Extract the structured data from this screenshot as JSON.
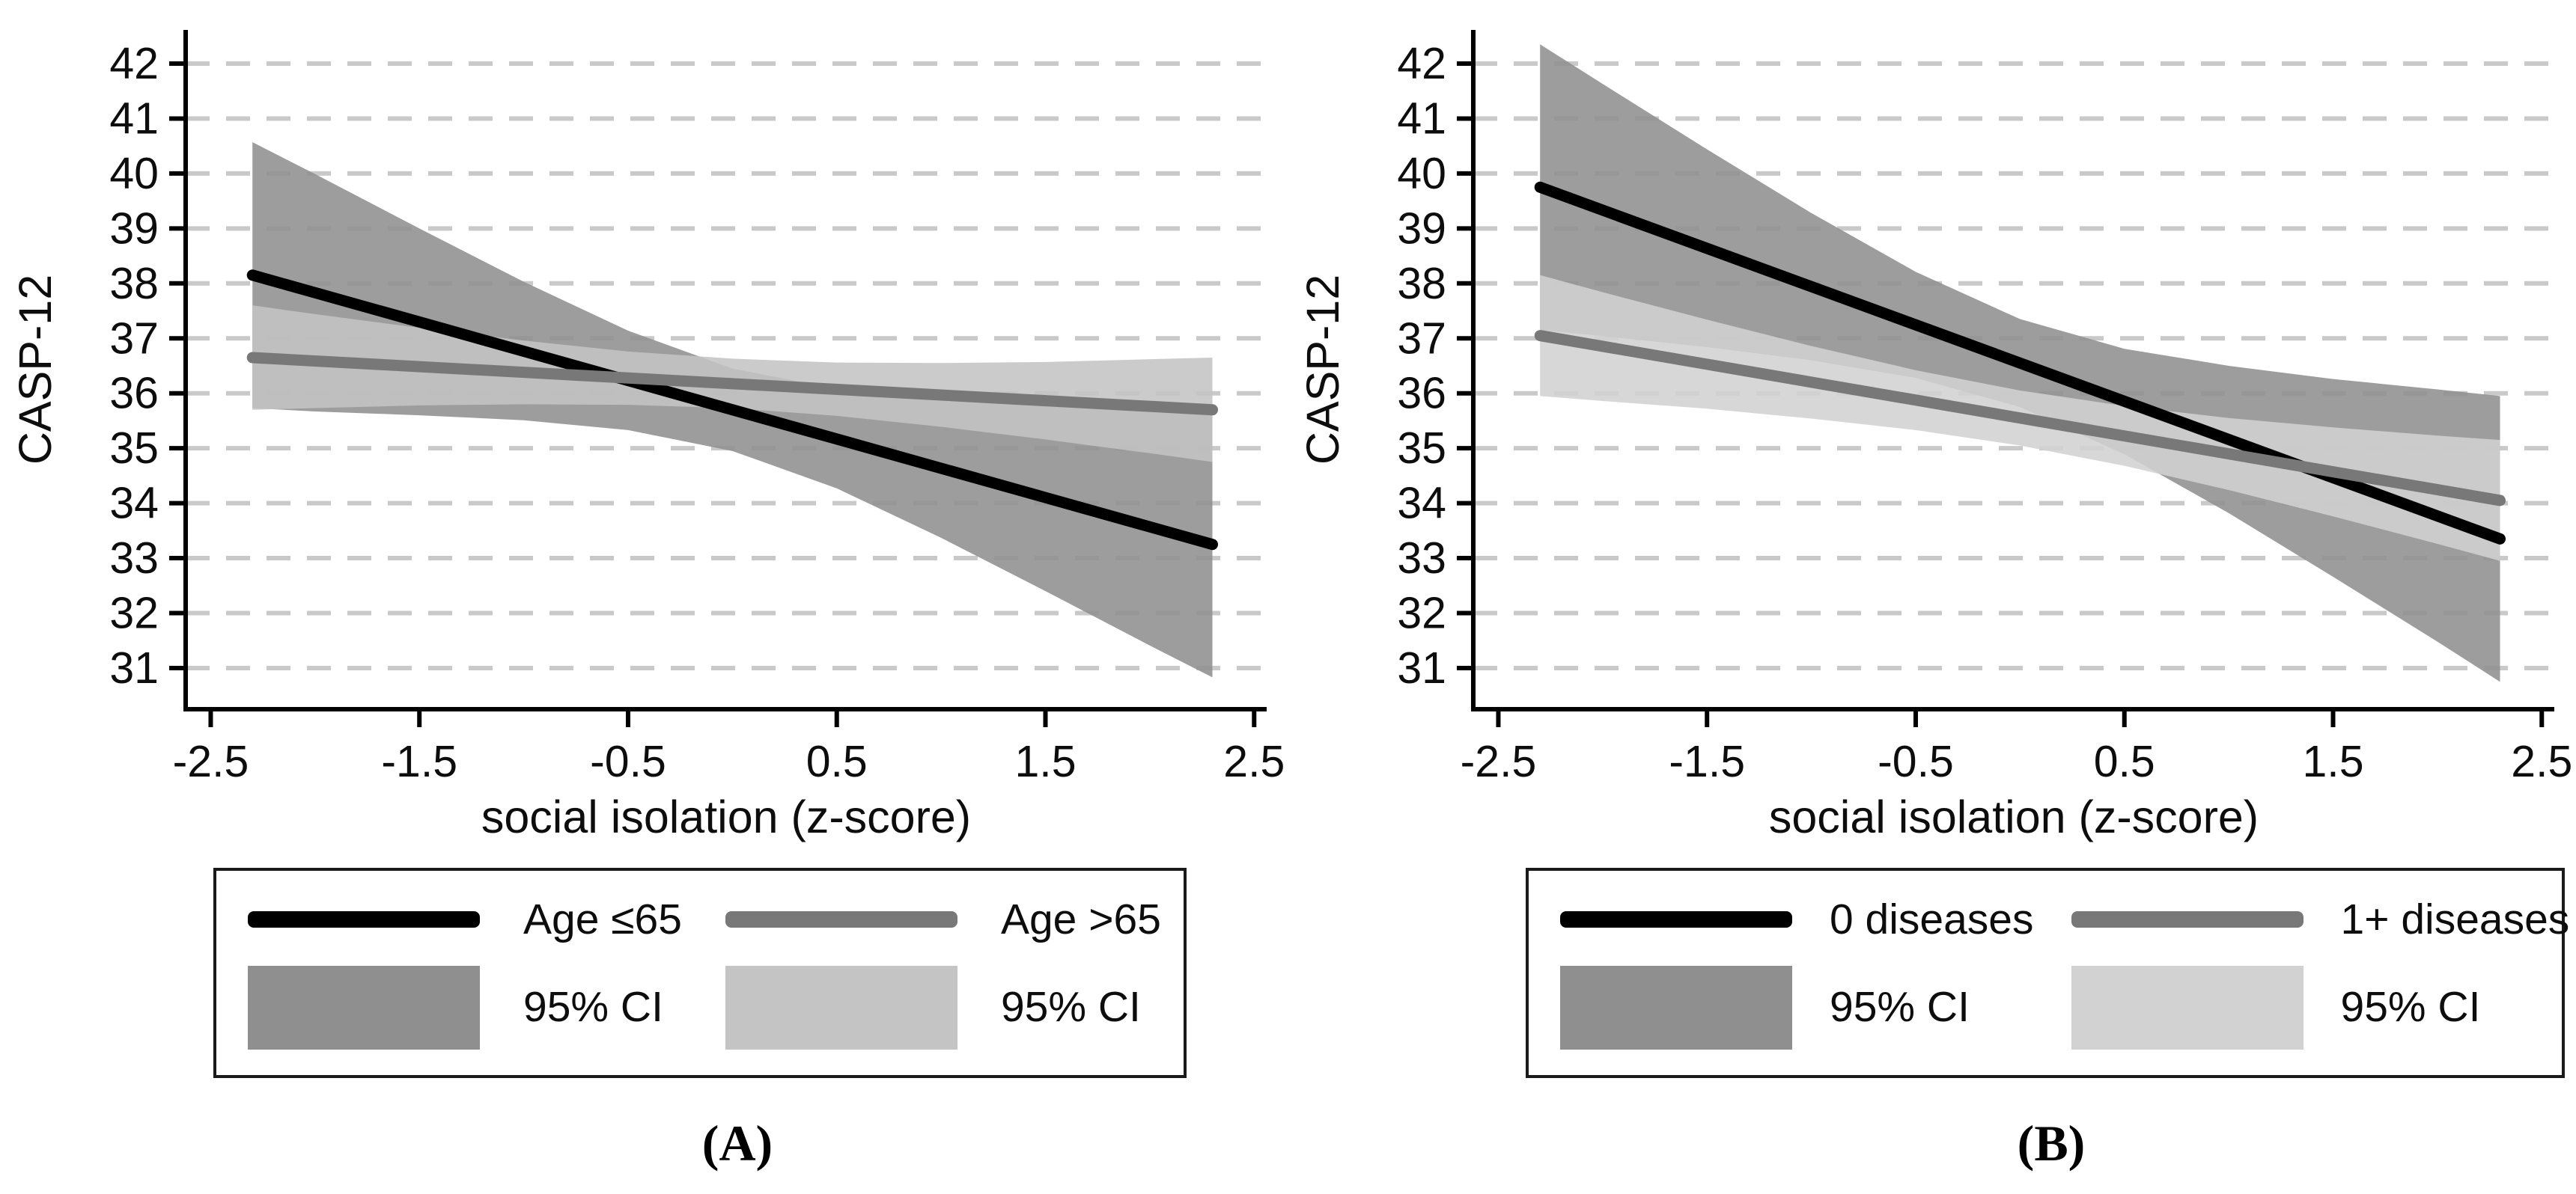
{
  "figure": {
    "background": "#ffffff",
    "axis_color": "#000000",
    "gridline_color": "#c9c9c9"
  },
  "chart_data": [
    {
      "type": "line",
      "caption": "(A)",
      "xlabel": "social isolation (z-score)",
      "ylabel": "CASP-12",
      "xlim": [
        -2.62,
        2.56
      ],
      "ylim": [
        30.25,
        42.6
      ],
      "grid": "horizontal-dashed",
      "legend_position": "bottom",
      "x_ticks": [
        -2.5,
        -1.5,
        -0.5,
        0.5,
        1.5,
        2.5
      ],
      "x_tick_labels": [
        "-2.5",
        "-1.5",
        "-0.5",
        "0.5",
        "1.5",
        "2.5"
      ],
      "y_ticks": [
        42,
        41,
        40,
        39,
        38,
        37,
        36,
        35,
        34,
        33,
        32,
        31
      ],
      "y_tick_labels": [
        "42",
        "41",
        "40",
        "39",
        "38",
        "37",
        "36",
        "35",
        "34",
        "33",
        "32",
        "31"
      ],
      "bands": [
        {
          "name": "95% CI (Age <=65)",
          "color": "#8f8f8f",
          "x": [
            -2.3,
            -2.0,
            -1.5,
            -1.0,
            -0.5,
            0,
            0.5,
            1.0,
            1.5,
            2.0,
            2.3
          ],
          "upper": [
            40.57,
            39.99,
            39.0,
            38.03,
            37.14,
            36.45,
            36.08,
            35.89,
            35.8,
            35.73,
            35.67
          ],
          "lower": [
            35.73,
            35.67,
            35.6,
            35.51,
            35.33,
            34.95,
            34.27,
            33.37,
            32.4,
            31.41,
            30.83
          ]
        },
        {
          "name": "95% CI (Age >65)",
          "color": "#c4c4c4",
          "x": [
            -2.3,
            -2.0,
            -1.5,
            -1.0,
            -0.5,
            0,
            0.5,
            1.0,
            1.5,
            2.0,
            2.3
          ],
          "upper": [
            37.6,
            37.44,
            37.19,
            36.96,
            36.76,
            36.63,
            36.56,
            36.55,
            36.57,
            36.62,
            36.65
          ],
          "lower": [
            35.7,
            35.73,
            35.78,
            35.8,
            35.79,
            35.73,
            35.59,
            35.39,
            35.16,
            34.91,
            34.75
          ]
        }
      ],
      "series": [
        {
          "name": "Age ≤65",
          "color": "#000000",
          "x": [
            -2.3,
            2.3
          ],
          "y": [
            38.15,
            33.25
          ]
        },
        {
          "name": "Age >65",
          "color": "#787878",
          "x": [
            -2.3,
            2.3
          ],
          "y": [
            36.65,
            35.7
          ]
        }
      ],
      "legend": [
        {
          "swatch": "line",
          "color": "#000000",
          "label": "Age ≤65"
        },
        {
          "swatch": "line",
          "color": "#787878",
          "label": "Age >65"
        },
        {
          "swatch": "area",
          "color": "#8f8f8f",
          "label": "95% CI"
        },
        {
          "swatch": "area",
          "color": "#c4c4c4",
          "label": "95% CI"
        }
      ]
    },
    {
      "type": "line",
      "caption": "(B)",
      "xlabel": "social isolation (z-score)",
      "ylabel": "CASP-12",
      "xlim": [
        -2.62,
        2.56
      ],
      "ylim": [
        30.25,
        42.6
      ],
      "grid": "horizontal-dashed",
      "legend_position": "bottom",
      "x_ticks": [
        -2.5,
        -1.5,
        -0.5,
        0.5,
        1.5,
        2.5
      ],
      "x_tick_labels": [
        "-2.5",
        "-1.5",
        "-0.5",
        "0.5",
        "1.5",
        "2.5"
      ],
      "y_ticks": [
        42,
        41,
        40,
        39,
        38,
        37,
        36,
        35,
        34,
        33,
        32,
        31
      ],
      "y_tick_labels": [
        "42",
        "41",
        "40",
        "39",
        "38",
        "37",
        "36",
        "35",
        "34",
        "33",
        "32",
        "31"
      ],
      "bands": [
        {
          "name": "95% CI (0 diseases)",
          "color": "#8f8f8f",
          "x": [
            -2.3,
            -2.0,
            -1.5,
            -1.0,
            -0.5,
            0,
            0.5,
            1.0,
            1.5,
            2.0,
            2.3
          ],
          "upper": [
            42.35,
            41.63,
            40.44,
            39.28,
            38.21,
            37.35,
            36.81,
            36.5,
            36.26,
            36.07,
            35.95
          ],
          "lower": [
            37.15,
            37.04,
            36.84,
            36.6,
            36.28,
            35.75,
            34.89,
            33.82,
            32.66,
            31.48,
            30.75
          ]
        },
        {
          "name": "95% CI (1+ diseases)",
          "color": "#d2d2d2",
          "x": [
            -2.3,
            -2.0,
            -1.5,
            -1.0,
            -0.5,
            0,
            0.5,
            1.0,
            1.5,
            2.0,
            2.3
          ],
          "upper": [
            38.15,
            37.84,
            37.34,
            36.86,
            36.42,
            36.05,
            35.77,
            35.55,
            35.38,
            35.23,
            35.15
          ],
          "lower": [
            35.95,
            35.86,
            35.72,
            35.54,
            35.33,
            35.05,
            34.68,
            34.24,
            33.76,
            33.26,
            32.95
          ]
        }
      ],
      "series": [
        {
          "name": "0 diseases",
          "color": "#000000",
          "x": [
            -2.3,
            2.3
          ],
          "y": [
            39.75,
            33.35
          ]
        },
        {
          "name": "1+ diseases",
          "color": "#787878",
          "x": [
            -2.3,
            2.3
          ],
          "y": [
            37.05,
            34.05
          ]
        }
      ],
      "legend": [
        {
          "swatch": "line",
          "color": "#000000",
          "label": "0 diseases"
        },
        {
          "swatch": "line",
          "color": "#787878",
          "label": "1+ diseases"
        },
        {
          "swatch": "area",
          "color": "#8f8f8f",
          "label": "95% CI"
        },
        {
          "swatch": "area",
          "color": "#d2d2d2",
          "label": "95% CI"
        }
      ]
    }
  ]
}
